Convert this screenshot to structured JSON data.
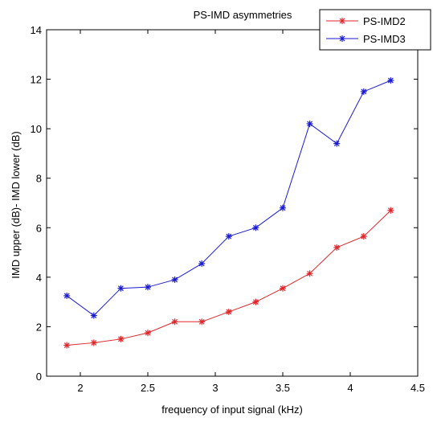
{
  "chart_data": {
    "type": "line",
    "title": "PS-IMD asymmetries",
    "xlabel": "frequency of input signal (kHz)",
    "ylabel": "IMD upper (dB)- IMD lower (dB)",
    "xlim": [
      1.75,
      4.5
    ],
    "ylim": [
      0,
      14
    ],
    "xticks": [
      2,
      2.5,
      3,
      3.5,
      4,
      4.5
    ],
    "xtick_labels": [
      "2",
      "2.5",
      "3",
      "3.5",
      "4",
      "4.5"
    ],
    "yticks": [
      0,
      2,
      4,
      6,
      8,
      10,
      12,
      14
    ],
    "ytick_labels": [
      "0",
      "2",
      "4",
      "6",
      "8",
      "10",
      "12",
      "14"
    ],
    "grid": false,
    "legend_position": "top-right",
    "x": [
      1.9,
      2.1,
      2.3,
      2.5,
      2.7,
      2.9,
      3.1,
      3.3,
      3.5,
      3.7,
      3.9,
      4.1,
      4.3
    ],
    "series": [
      {
        "name": "PS-IMD2",
        "color": "#e0252b",
        "marker": "asterisk",
        "values": [
          1.25,
          1.35,
          1.5,
          1.75,
          2.2,
          2.2,
          2.6,
          3.0,
          3.55,
          4.15,
          5.2,
          5.65,
          6.7
        ]
      },
      {
        "name": "PS-IMD3",
        "color": "#1a1ad0",
        "marker": "asterisk",
        "values": [
          3.25,
          2.45,
          3.55,
          3.6,
          3.9,
          4.55,
          5.65,
          6.0,
          6.8,
          10.2,
          9.4,
          11.5,
          11.95
        ]
      }
    ]
  }
}
